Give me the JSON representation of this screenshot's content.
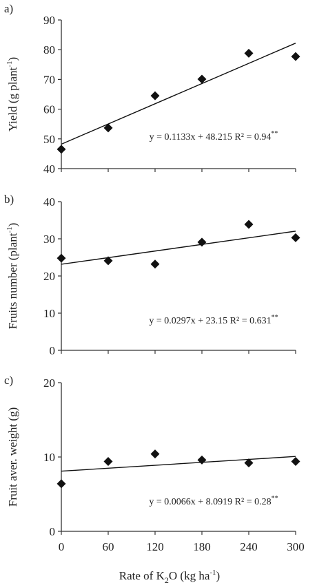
{
  "chart_data": [
    {
      "type": "scatter",
      "panel_label": "a)",
      "ylabel": "Yield (g plant",
      "ylabel_sup": "-1",
      "ylabel_end": ")",
      "ylim": [
        40,
        90
      ],
      "yticks": [
        "40",
        "50",
        "60",
        "70",
        "80",
        "90"
      ],
      "x": [
        0,
        60,
        120,
        180,
        240,
        300
      ],
      "values": [
        46.5,
        53.7,
        64.5,
        70.1,
        78.8,
        77.7
      ],
      "trendline": {
        "slope": 0.1133,
        "intercept": 48.215
      },
      "equation": "y = 0.1133x + 48.215 R² = 0.94",
      "equation_sup": "**"
    },
    {
      "type": "scatter",
      "panel_label": "b)",
      "ylabel": "Fruits number (plant",
      "ylabel_sup": "-1",
      "ylabel_end": ")",
      "ylim": [
        0,
        40
      ],
      "yticks": [
        "0",
        "10",
        "20",
        "30",
        "40"
      ],
      "x": [
        0,
        60,
        120,
        180,
        240,
        300
      ],
      "values": [
        24.8,
        24.1,
        23.2,
        29.1,
        33.9,
        30.3
      ],
      "trendline": {
        "slope": 0.0297,
        "intercept": 23.15
      },
      "equation": "y = 0.0297x + 23.15 R² = 0.631",
      "equation_sup": "**"
    },
    {
      "type": "scatter",
      "panel_label": "c)",
      "ylabel": "Fruit aver. weight (g)",
      "ylabel_sup": "",
      "ylabel_end": "",
      "ylim": [
        0,
        20
      ],
      "yticks": [
        "0",
        "10",
        "20"
      ],
      "x": [
        0,
        60,
        120,
        180,
        240,
        300
      ],
      "values": [
        6.4,
        9.4,
        10.4,
        9.6,
        9.2,
        9.4
      ],
      "trendline": {
        "slope": 0.0066,
        "intercept": 8.0919
      },
      "equation": "y = 0.0066x + 8.0919 R² = 0.28",
      "equation_sup": "**"
    }
  ],
  "xaxis": {
    "ticks": [
      "0",
      "60",
      "120",
      "180",
      "240",
      "300"
    ],
    "label_main": "Rate of K",
    "label_sub": "2",
    "label_mid": "O (kg ha",
    "label_sup": "-1",
    "label_end": ")"
  },
  "colors": {
    "marker": "#111111",
    "line": "#111111",
    "axis": "#333333",
    "text": "#222222"
  }
}
